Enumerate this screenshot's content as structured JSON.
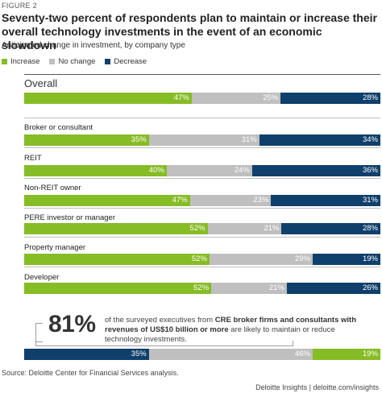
{
  "figure_label": "FIGURE 2",
  "title": "Seventy-two percent of respondents plan to maintain or increase their overall technology investments in the event of an economic slowdown",
  "subtitle": "Anticipated change in investment, by company type",
  "colors": {
    "increase": "#86bc25",
    "no_change": "#bfbfbf",
    "decrease": "#0f3f6b"
  },
  "chart_data": {
    "type": "bar",
    "orientation": "horizontal-stacked-100",
    "series_names": [
      "Increase",
      "No change",
      "Decrease"
    ],
    "groups": [
      {
        "label": "Overall",
        "values": [
          47,
          25,
          28
        ],
        "labels": [
          "47%",
          "25%",
          "28%"
        ]
      },
      {
        "label": "Broker or consultant",
        "values": [
          35,
          31,
          34
        ],
        "labels": [
          "35%",
          "31%",
          "34%"
        ]
      },
      {
        "label": "REIT",
        "values": [
          40,
          24,
          36
        ],
        "labels": [
          "40%",
          "24%",
          "36%"
        ]
      },
      {
        "label": "Non-REIT owner",
        "values": [
          47,
          23,
          31
        ],
        "labels": [
          "47%",
          "23%",
          "31%"
        ]
      },
      {
        "label": "PERE investor or manager",
        "values": [
          52,
          21,
          28
        ],
        "labels": [
          "52%",
          "21%",
          "28%"
        ]
      },
      {
        "label": "Property manager",
        "values": [
          52,
          29,
          19
        ],
        "labels": [
          "52%",
          "29%",
          "19%"
        ]
      },
      {
        "label": "Developer",
        "values": [
          52,
          21,
          26
        ],
        "labels": [
          "52%",
          "21%",
          "26%"
        ]
      }
    ],
    "callout_bar": {
      "order": [
        "decrease",
        "no_change",
        "increase"
      ],
      "values": [
        35,
        46,
        19
      ],
      "labels": [
        "35%",
        "46%",
        "19%"
      ]
    }
  },
  "callout": {
    "number": "81%",
    "text_1": "of the surveyed executives from ",
    "text_bold_1": "CRE broker firms and consultants with revenues of US$10 billion or more",
    "text_2": " are likely to maintain or reduce technology investments."
  },
  "source": "Source: Deloitte Center for Financial Services analysis.",
  "credit": "Deloitte Insights | deloitte.com/insights"
}
